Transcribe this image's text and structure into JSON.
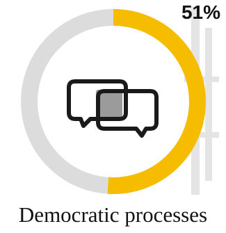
{
  "chart_data": {
    "type": "pie",
    "values": [
      51,
      49
    ],
    "value_label": "51%",
    "title": "Democratic processes",
    "colors": {
      "filled": "#F5BC00",
      "remaining": "#DCDCDC"
    },
    "icon": "speech-bubbles-icon"
  }
}
